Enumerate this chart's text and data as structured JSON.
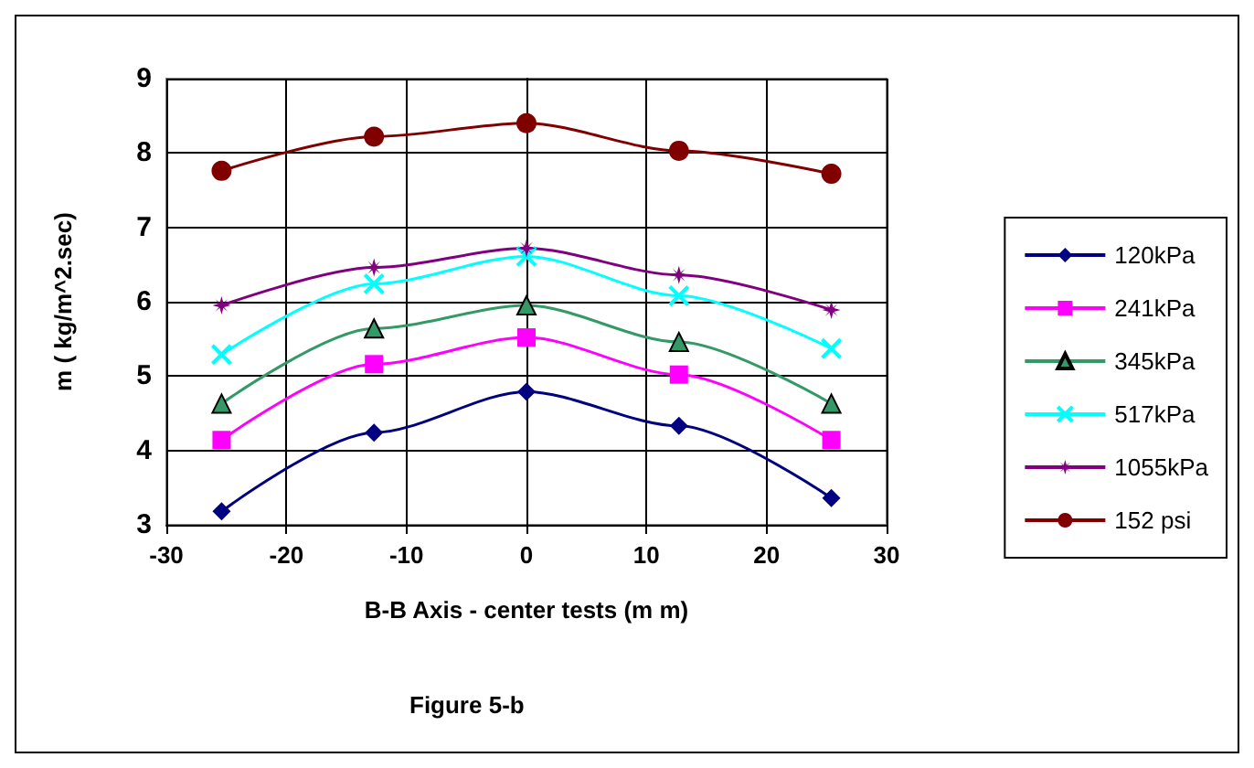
{
  "chart_data": {
    "type": "line",
    "xlabel": "B-B Axis - center tests (m m)",
    "ylabel": "m ( kg/m^2.sec)",
    "annotations": [
      "Figure 5-b"
    ],
    "x": [
      -25.4,
      -12.7,
      0,
      12.7,
      25.4
    ],
    "xlim": [
      -30,
      30
    ],
    "xticks": [
      -30,
      -20,
      -10,
      0,
      10,
      20,
      30
    ],
    "ylim": [
      3,
      9
    ],
    "yticks": [
      3,
      4,
      5,
      6,
      7,
      8,
      9
    ],
    "grid": true,
    "legend": "right",
    "series": [
      {
        "name": "120kPa",
        "color": "#000080",
        "marker": "diamond",
        "values": [
          3.18,
          4.24,
          4.79,
          4.33,
          3.36
        ]
      },
      {
        "name": "241kPa",
        "color": "#ff00ff",
        "marker": "square",
        "values": [
          4.14,
          5.16,
          5.52,
          5.02,
          4.14
        ]
      },
      {
        "name": "345kPa",
        "color": "#339966",
        "marker": "triangle",
        "values": [
          4.63,
          5.64,
          5.95,
          5.46,
          4.63
        ]
      },
      {
        "name": "517kPa",
        "color": "#00ffff",
        "marker": "cross",
        "values": [
          5.29,
          6.24,
          6.61,
          6.08,
          5.37
        ]
      },
      {
        "name": "1055kPa",
        "color": "#800080",
        "marker": "star",
        "values": [
          5.95,
          6.46,
          6.72,
          6.36,
          5.89
        ]
      },
      {
        "name": "152 psi",
        "color": "#800000",
        "marker": "circle",
        "values": [
          7.76,
          8.22,
          8.4,
          8.03,
          7.72
        ]
      }
    ]
  }
}
